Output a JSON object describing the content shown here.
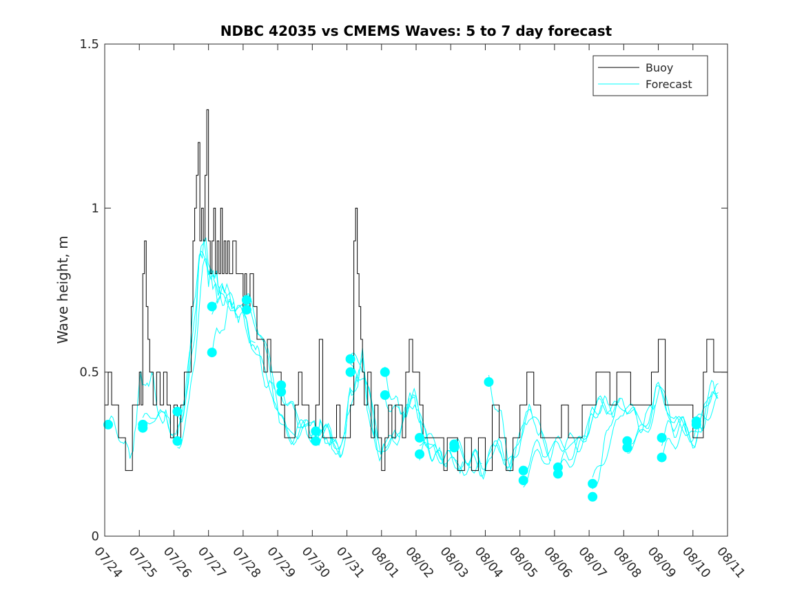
{
  "chart_data": {
    "type": "line",
    "title": "NDBC 42035 vs CMEMS Waves: 5 to 7 day forecast",
    "xlabel": "",
    "ylabel": "Wave height, m",
    "xlim": [
      "07/24",
      "08/11"
    ],
    "ylim": [
      0,
      1.5
    ],
    "x_tick_labels": [
      "07/24",
      "07/25",
      "07/26",
      "07/27",
      "07/28",
      "07/29",
      "07/30",
      "07/31",
      "08/01",
      "08/02",
      "08/03",
      "08/04",
      "08/05",
      "08/06",
      "08/07",
      "08/08",
      "08/09",
      "08/10",
      "08/11"
    ],
    "y_tick_labels": [
      "0",
      "0.5",
      "1",
      "1.5"
    ],
    "y_ticks": [
      0,
      0.5,
      1,
      1.5
    ],
    "legend": {
      "position": "top-right",
      "entries": [
        "Buoy",
        "Forecast"
      ]
    },
    "grid": false,
    "colors": {
      "buoy": "#000000",
      "forecast": "#00ffff"
    },
    "series": [
      {
        "name": "Buoy",
        "style": "step",
        "x_days_after_07_24": [
          0,
          0.1,
          0.2,
          0.3,
          0.4,
          0.6,
          0.8,
          0.9,
          1.0,
          1.05,
          1.1,
          1.15,
          1.2,
          1.25,
          1.3,
          1.35,
          1.4,
          1.45,
          1.5,
          1.6,
          1.7,
          1.8,
          1.9,
          2.0,
          2.1,
          2.2,
          2.3,
          2.4,
          2.5,
          2.55,
          2.6,
          2.65,
          2.7,
          2.75,
          2.8,
          2.85,
          2.9,
          2.95,
          3.0,
          3.05,
          3.1,
          3.15,
          3.2,
          3.25,
          3.3,
          3.35,
          3.4,
          3.45,
          3.5,
          3.55,
          3.6,
          3.7,
          3.8,
          3.9,
          4.0,
          4.05,
          4.1,
          4.2,
          4.3,
          4.4,
          4.5,
          4.6,
          4.7,
          4.8,
          4.9,
          5.0,
          5.1,
          5.2,
          5.3,
          5.4,
          5.5,
          5.6,
          5.7,
          5.8,
          5.9,
          6.0,
          6.1,
          6.2,
          6.3,
          6.4,
          6.5,
          6.6,
          6.7,
          6.8,
          6.9,
          7.0,
          7.1,
          7.2,
          7.25,
          7.3,
          7.35,
          7.4,
          7.45,
          7.5,
          7.6,
          7.7,
          7.8,
          7.9,
          8.0,
          8.1,
          8.2,
          8.3,
          8.4,
          8.5,
          8.6,
          8.7,
          8.8,
          8.9,
          9.0,
          9.1,
          9.2,
          9.3,
          9.4,
          9.5,
          9.6,
          9.7,
          9.8,
          9.9,
          10.0,
          10.2,
          10.4,
          10.6,
          10.8,
          11.0,
          11.2,
          11.4,
          11.6,
          11.8,
          12.0,
          12.2,
          12.4,
          12.6,
          12.8,
          13.0,
          13.2,
          13.4,
          13.6,
          13.8,
          14.0,
          14.2,
          14.4,
          14.6,
          14.8,
          15.0,
          15.2,
          15.4,
          15.6,
          15.8,
          16.0,
          16.2,
          16.4,
          16.6,
          16.8,
          17.0,
          17.2,
          17.3,
          17.4,
          17.6,
          17.8,
          18.0
        ],
        "values": [
          0.4,
          0.5,
          0.4,
          0.4,
          0.3,
          0.2,
          0.4,
          0.4,
          0.5,
          0.4,
          0.8,
          0.9,
          0.7,
          0.6,
          0.5,
          0.5,
          0.4,
          0.4,
          0.5,
          0.4,
          0.5,
          0.4,
          0.3,
          0.4,
          0.3,
          0.4,
          0.5,
          0.5,
          0.7,
          0.9,
          1.0,
          1.1,
          1.2,
          0.9,
          1.0,
          0.9,
          1.1,
          1.3,
          0.9,
          0.8,
          0.9,
          1.0,
          0.8,
          0.9,
          0.8,
          1.0,
          0.8,
          0.9,
          0.8,
          0.9,
          0.8,
          0.9,
          0.8,
          0.8,
          0.7,
          0.8,
          0.7,
          0.8,
          0.7,
          0.6,
          0.6,
          0.5,
          0.6,
          0.5,
          0.5,
          0.5,
          0.4,
          0.3,
          0.3,
          0.3,
          0.4,
          0.5,
          0.4,
          0.4,
          0.3,
          0.3,
          0.4,
          0.6,
          0.3,
          0.3,
          0.3,
          0.3,
          0.4,
          0.3,
          0.3,
          0.3,
          0.4,
          0.9,
          1.0,
          0.8,
          0.7,
          0.6,
          0.5,
          0.4,
          0.5,
          0.3,
          0.4,
          0.3,
          0.2,
          0.3,
          0.4,
          0.3,
          0.4,
          0.4,
          0.3,
          0.5,
          0.6,
          0.5,
          0.5,
          0.4,
          0.3,
          0.3,
          0.3,
          0.3,
          0.3,
          0.3,
          0.2,
          0.3,
          0.3,
          0.2,
          0.3,
          0.2,
          0.3,
          0.2,
          0.4,
          0.3,
          0.2,
          0.3,
          0.4,
          0.5,
          0.4,
          0.3,
          0.3,
          0.3,
          0.4,
          0.3,
          0.3,
          0.4,
          0.4,
          0.5,
          0.5,
          0.4,
          0.5,
          0.5,
          0.4,
          0.4,
          0.4,
          0.5,
          0.6,
          0.4,
          0.4,
          0.4,
          0.4,
          0.3,
          0.3,
          0.5,
          0.6,
          0.5,
          0.5
        ]
      },
      {
        "name": "Forecast",
        "style": "line",
        "initial_points_days_after_07_24": [
          0.1,
          1.1,
          1.1,
          2.1,
          2.1,
          3.1,
          3.1,
          4.1,
          4.1,
          5.1,
          5.1,
          6.1,
          6.1,
          7.1,
          7.1,
          8.1,
          8.1,
          9.1,
          9.1,
          10.1,
          10.1,
          11.1,
          12.1,
          12.1,
          13.1,
          13.1,
          14.1,
          14.1,
          15.1,
          15.1,
          16.1,
          16.1,
          17.1,
          17.1
        ],
        "initial_points_values": [
          0.34,
          0.34,
          0.33,
          0.38,
          0.29,
          0.7,
          0.56,
          0.72,
          0.69,
          0.46,
          0.44,
          0.32,
          0.29,
          0.54,
          0.5,
          0.5,
          0.43,
          0.3,
          0.25,
          0.28,
          0.27,
          0.47,
          0.2,
          0.17,
          0.21,
          0.19,
          0.16,
          0.12,
          0.29,
          0.27,
          0.3,
          0.24,
          0.35,
          0.34
        ]
      }
    ]
  }
}
